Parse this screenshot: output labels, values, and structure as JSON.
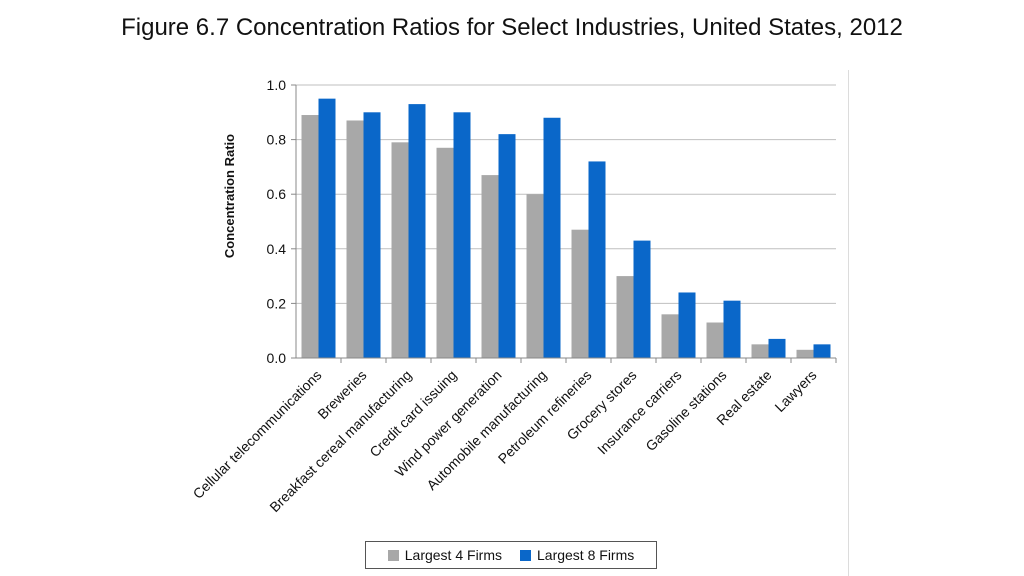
{
  "header": {
    "title": "Figure 6.7  Concentration Ratios for Select Industries, United States, 2012"
  },
  "colors": {
    "largest4": "#a8a8a8",
    "largest8": "#0a67c9",
    "grid": "#bfbfbf",
    "axis": "#888888"
  },
  "legend": {
    "items": [
      {
        "label": "Largest 4 Firms",
        "color": "#a8a8a8"
      },
      {
        "label": "Largest 8 Firms",
        "color": "#0a67c9"
      }
    ]
  },
  "chart_data": {
    "type": "bar",
    "title": "Figure 6.7  Concentration Ratios for Select Industries, United States, 2012",
    "xlabel": "",
    "ylabel": "Concentration Ratio",
    "ylim": [
      0,
      1.0
    ],
    "yticks": [
      "0.0",
      "0.2",
      "0.4",
      "0.6",
      "0.8",
      "1.0"
    ],
    "grid": true,
    "legend_position": "bottom",
    "categories": [
      "Cellular telecommunications",
      "Breweries",
      "Breakfast cereal manufacturing",
      "Credit card issuing",
      "Wind power generation",
      "Automobile manufacturing",
      "Petroleum refineries",
      "Grocery stores",
      "Insurance carriers",
      "Gasoline stations",
      "Real estate",
      "Lawyers"
    ],
    "series": [
      {
        "name": "Largest 4 Firms",
        "values": [
          0.89,
          0.87,
          0.79,
          0.77,
          0.67,
          0.6,
          0.47,
          0.3,
          0.16,
          0.13,
          0.05,
          0.03
        ]
      },
      {
        "name": "Largest 8 Firms",
        "values": [
          0.95,
          0.9,
          0.93,
          0.9,
          0.82,
          0.88,
          0.72,
          0.43,
          0.24,
          0.21,
          0.07,
          0.05
        ]
      }
    ]
  }
}
